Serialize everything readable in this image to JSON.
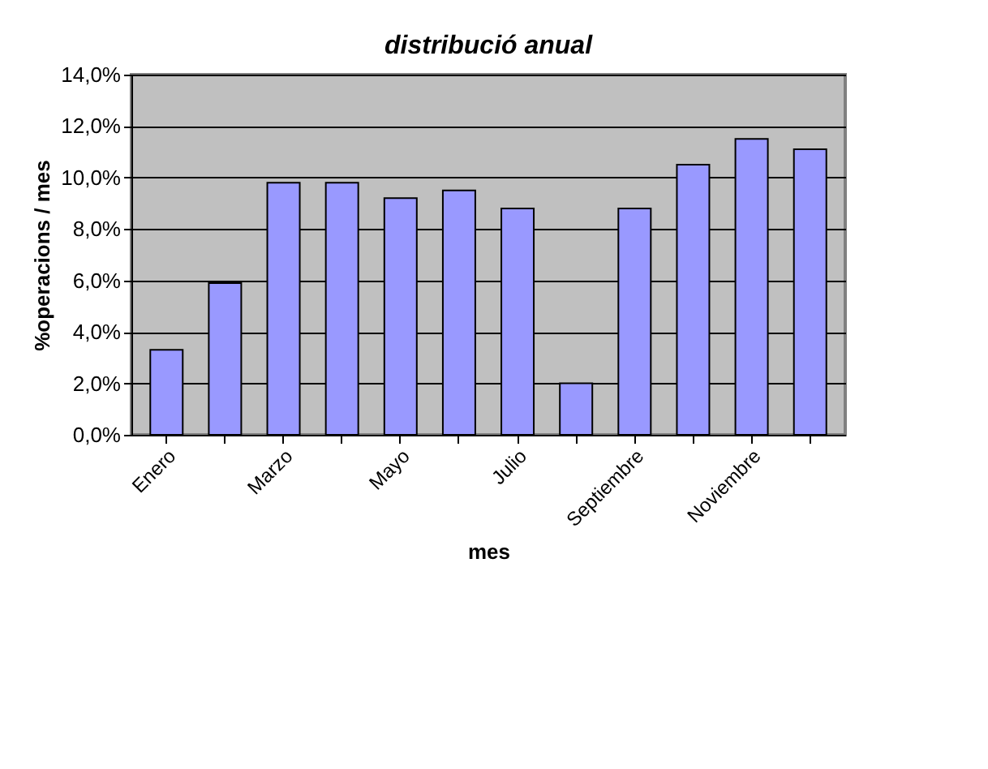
{
  "chart_data": {
    "type": "bar",
    "title": "distribució anual",
    "xlabel": "mes",
    "ylabel": "%operacions / mes",
    "categories": [
      "Enero",
      null,
      "Marzo",
      null,
      "Mayo",
      null,
      "Julio",
      null,
      "Septiembre",
      null,
      "Noviembre",
      null
    ],
    "values": [
      3.3,
      5.9,
      9.8,
      9.8,
      9.2,
      9.5,
      8.8,
      2.0,
      8.8,
      10.5,
      11.5,
      11.1
    ],
    "color": "#9999ff",
    "ylim": [
      0,
      14
    ],
    "yticks": [
      {
        "value": 0,
        "label": "0,0%"
      },
      {
        "value": 2,
        "label": "2,0%"
      },
      {
        "value": 4,
        "label": "4,0%"
      },
      {
        "value": 6,
        "label": "6,0%"
      },
      {
        "value": 8,
        "label": "8,0%"
      },
      {
        "value": 10,
        "label": "10,0%"
      },
      {
        "value": 12,
        "label": "12,0%"
      },
      {
        "value": 14,
        "label": "14,0%"
      }
    ],
    "grid": "y"
  }
}
